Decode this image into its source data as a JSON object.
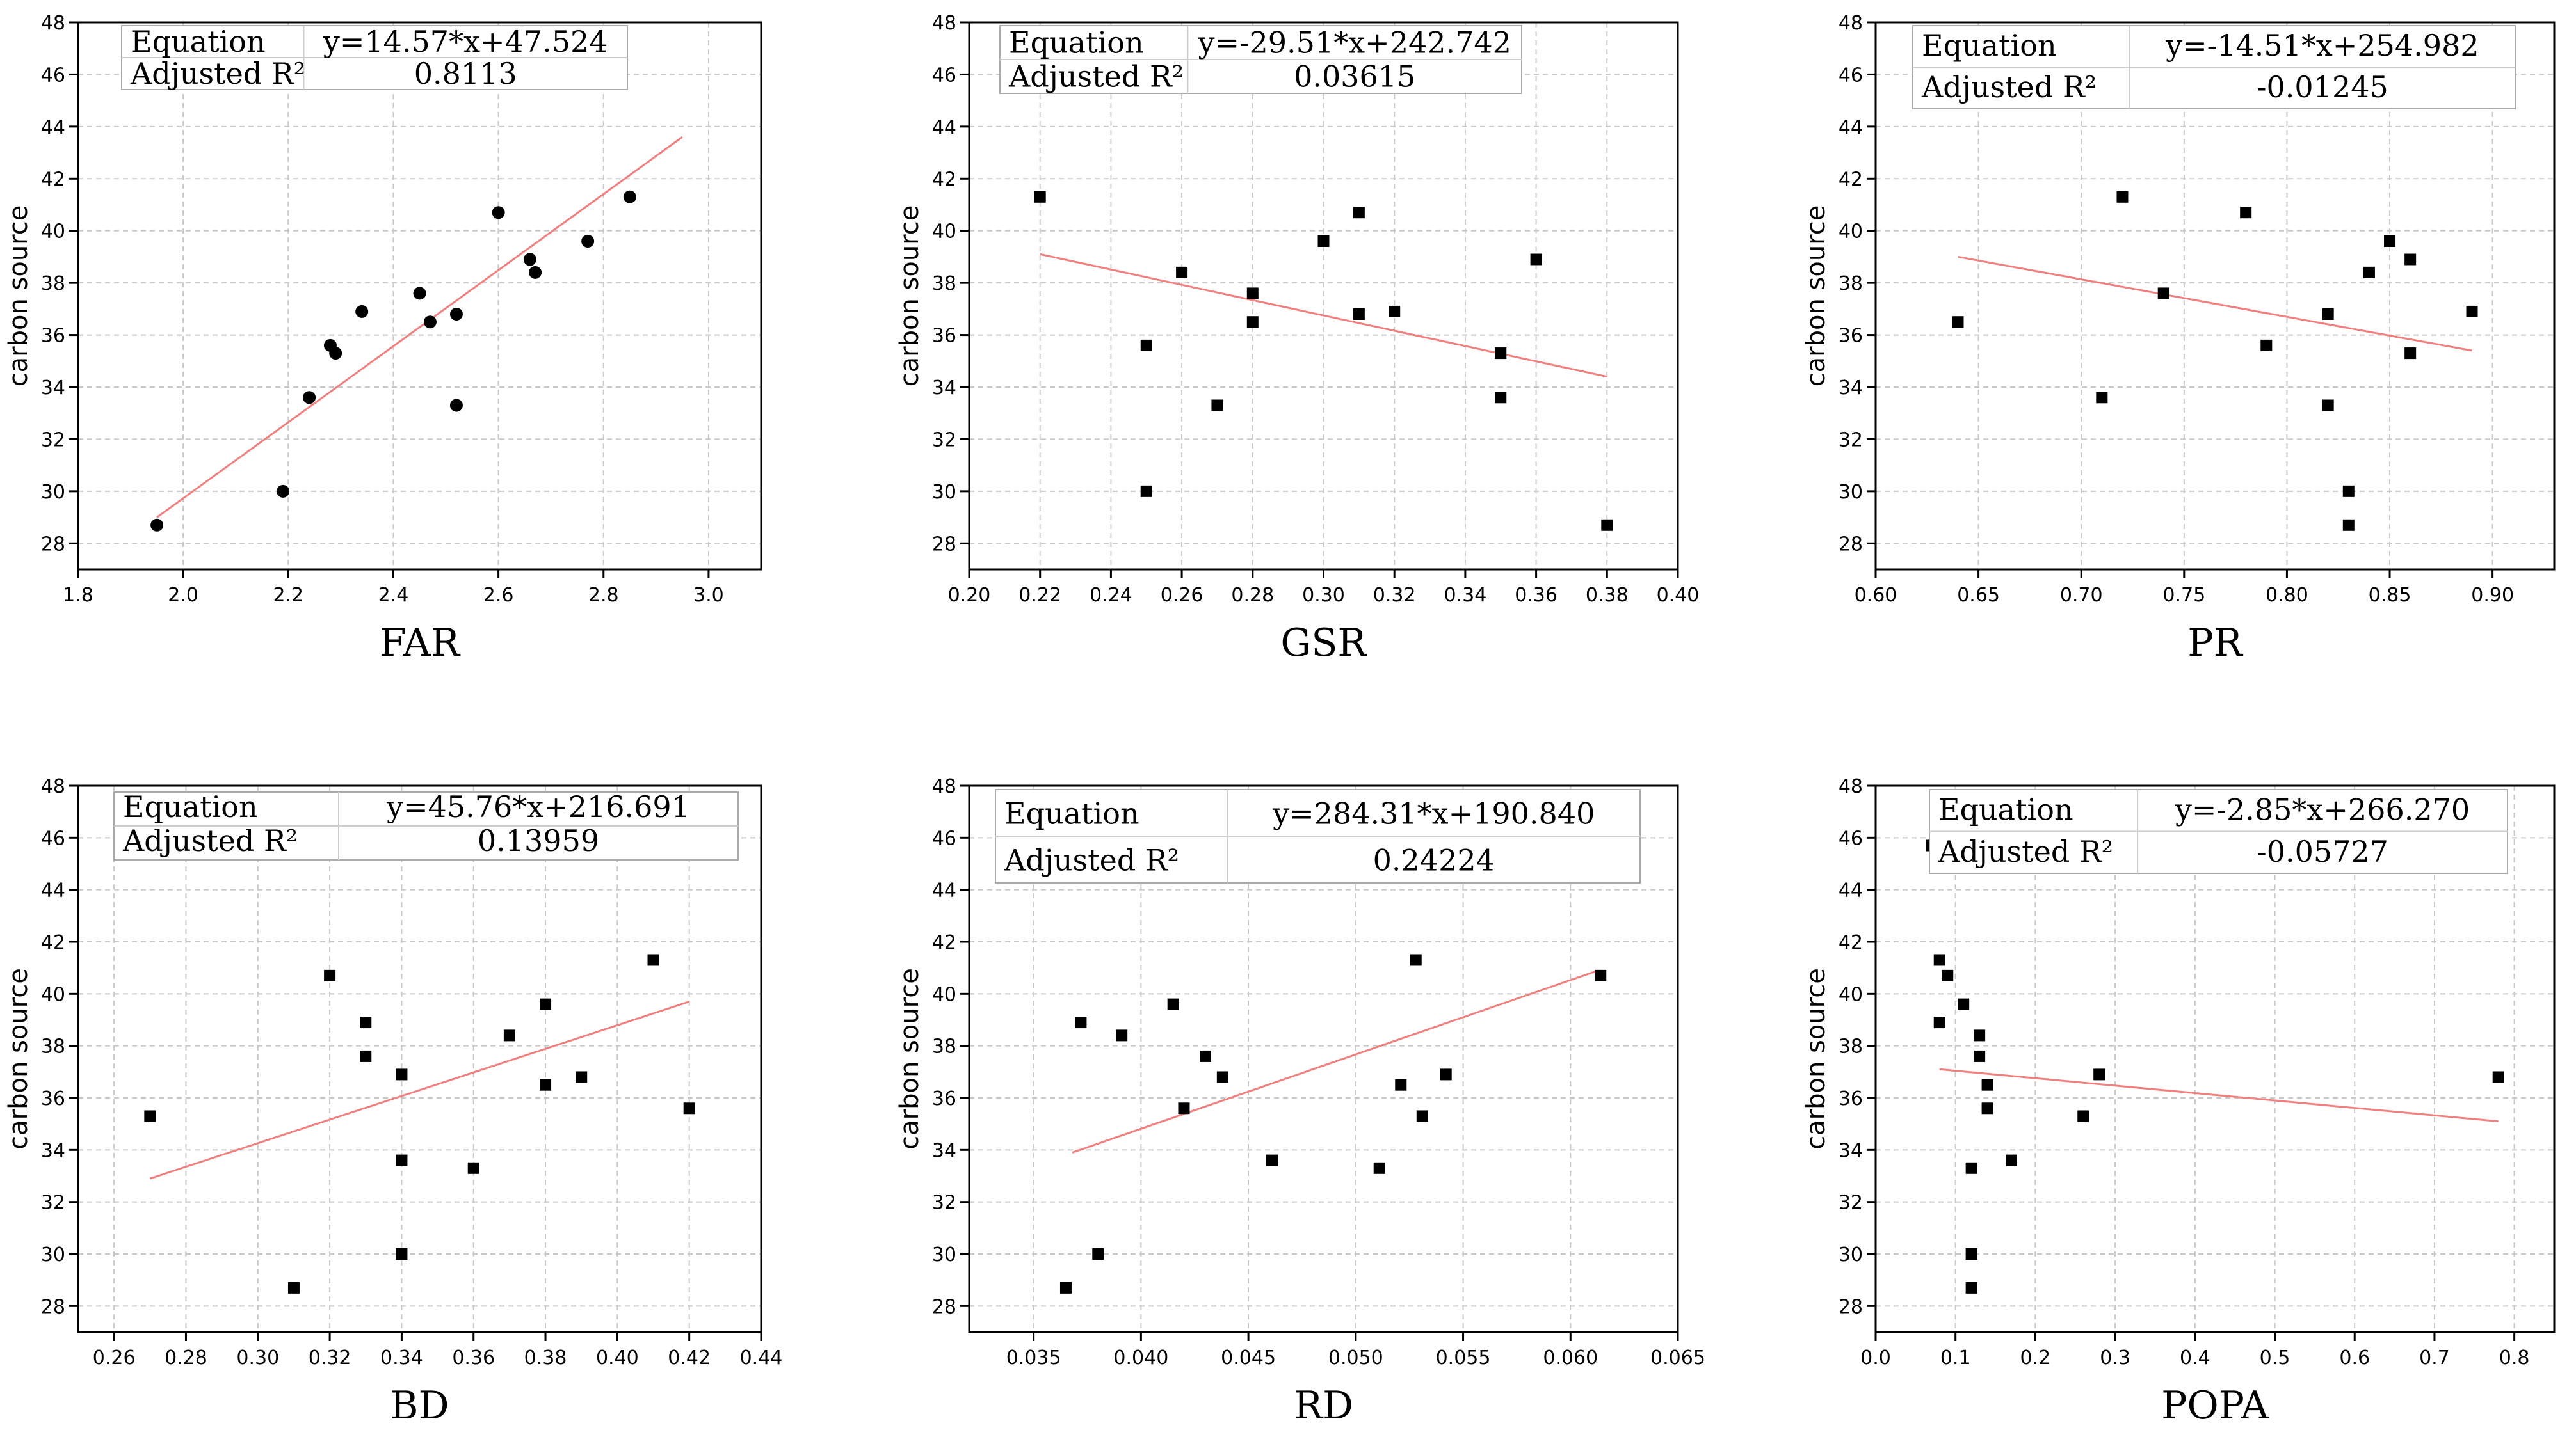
{
  "figure": {
    "background": "#ffffff",
    "fit_color": "#f08080",
    "point_color": "#000000",
    "grid_color": "#c8c8c8",
    "equation_label": "Equation",
    "r2_label": "Adjusted R²"
  },
  "chart_data": [
    {
      "type": "scatter",
      "title": "",
      "xlabel": "FAR",
      "ylabel": "carbon source",
      "xlim": [
        1.8,
        3.1
      ],
      "ylim": [
        27,
        48
      ],
      "xticks": [
        1.8,
        2.0,
        2.2,
        2.4,
        2.6,
        2.8,
        3.0
      ],
      "xtick_labels": [
        "1.8",
        "2.0",
        "2.2",
        "2.4",
        "2.6",
        "2.8",
        "3.0"
      ],
      "yticks": [
        28,
        30,
        32,
        34,
        36,
        38,
        40,
        42,
        44,
        46,
        48
      ],
      "ytick_labels": [
        "28",
        "30",
        "32",
        "34",
        "36",
        "38",
        "40",
        "42",
        "44",
        "46",
        "48"
      ],
      "marker": "circle",
      "points": [
        [
          1.95,
          28.7
        ],
        [
          2.19,
          30.0
        ],
        [
          2.24,
          33.6
        ],
        [
          2.28,
          35.6
        ],
        [
          2.29,
          35.3
        ],
        [
          2.34,
          36.9
        ],
        [
          2.45,
          37.6
        ],
        [
          2.47,
          36.5
        ],
        [
          2.52,
          36.8
        ],
        [
          2.52,
          33.3
        ],
        [
          2.6,
          40.7
        ],
        [
          2.66,
          38.9
        ],
        [
          2.67,
          38.4
        ],
        [
          2.77,
          39.6
        ],
        [
          2.85,
          41.3
        ]
      ],
      "fit": {
        "x": [
          1.95,
          2.95
        ],
        "y": [
          29.0,
          43.6
        ]
      },
      "equation": "y=14.57*x+47.524",
      "adjusted_r2": "0.8113"
    },
    {
      "type": "scatter",
      "title": "",
      "xlabel": "GSR",
      "ylabel": "carbon source",
      "xlim": [
        0.2,
        0.4
      ],
      "ylim": [
        27,
        48
      ],
      "xticks": [
        0.2,
        0.22,
        0.24,
        0.26,
        0.28,
        0.3,
        0.32,
        0.34,
        0.36,
        0.38,
        0.4
      ],
      "xtick_labels": [
        "0.20",
        "0.22",
        "0.24",
        "0.26",
        "0.28",
        "0.30",
        "0.32",
        "0.34",
        "0.36",
        "0.38",
        "0.40"
      ],
      "yticks": [
        28,
        30,
        32,
        34,
        36,
        38,
        40,
        42,
        44,
        46,
        48
      ],
      "ytick_labels": [
        "28",
        "30",
        "32",
        "34",
        "36",
        "38",
        "40",
        "42",
        "44",
        "46",
        "48"
      ],
      "marker": "square",
      "points": [
        [
          0.22,
          41.3
        ],
        [
          0.25,
          35.6
        ],
        [
          0.25,
          30.0
        ],
        [
          0.26,
          38.4
        ],
        [
          0.27,
          33.3
        ],
        [
          0.28,
          37.6
        ],
        [
          0.28,
          36.5
        ],
        [
          0.3,
          39.6
        ],
        [
          0.31,
          40.7
        ],
        [
          0.31,
          36.8
        ],
        [
          0.32,
          36.9
        ],
        [
          0.35,
          35.3
        ],
        [
          0.35,
          33.6
        ],
        [
          0.36,
          38.9
        ],
        [
          0.38,
          28.7
        ]
      ],
      "fit": {
        "x": [
          0.22,
          0.38
        ],
        "y": [
          39.1,
          34.4
        ]
      },
      "equation": "y=-29.51*x+242.742",
      "adjusted_r2": "0.03615"
    },
    {
      "type": "scatter",
      "title": "",
      "xlabel": "PR",
      "ylabel": "carbon source",
      "xlim": [
        0.6,
        0.93
      ],
      "ylim": [
        27,
        48
      ],
      "xticks": [
        0.6,
        0.65,
        0.7,
        0.75,
        0.8,
        0.85,
        0.9
      ],
      "xtick_labels": [
        "0.60",
        "0.65",
        "0.70",
        "0.75",
        "0.80",
        "0.85",
        "0.90"
      ],
      "yticks": [
        28,
        30,
        32,
        34,
        36,
        38,
        40,
        42,
        44,
        46,
        48
      ],
      "ytick_labels": [
        "28",
        "30",
        "32",
        "34",
        "36",
        "38",
        "40",
        "42",
        "44",
        "46",
        "48"
      ],
      "marker": "square",
      "points": [
        [
          0.64,
          36.5
        ],
        [
          0.71,
          33.6
        ],
        [
          0.72,
          41.3
        ],
        [
          0.74,
          37.6
        ],
        [
          0.78,
          40.7
        ],
        [
          0.79,
          35.6
        ],
        [
          0.82,
          36.8
        ],
        [
          0.82,
          33.3
        ],
        [
          0.83,
          30.0
        ],
        [
          0.83,
          28.7
        ],
        [
          0.84,
          38.4
        ],
        [
          0.85,
          39.6
        ],
        [
          0.86,
          38.9
        ],
        [
          0.86,
          35.3
        ],
        [
          0.89,
          36.9
        ]
      ],
      "fit": {
        "x": [
          0.64,
          0.89
        ],
        "y": [
          39.0,
          35.4
        ]
      },
      "equation": "y=-14.51*x+254.982",
      "adjusted_r2": "-0.01245"
    },
    {
      "type": "scatter",
      "title": "",
      "xlabel": "BD",
      "ylabel": "carbon source",
      "xlim": [
        0.25,
        0.44
      ],
      "ylim": [
        27,
        48
      ],
      "xticks": [
        0.26,
        0.28,
        0.3,
        0.32,
        0.34,
        0.36,
        0.38,
        0.4,
        0.42,
        0.44
      ],
      "xtick_labels": [
        "0.26",
        "0.28",
        "0.30",
        "0.32",
        "0.34",
        "0.36",
        "0.38",
        "0.40",
        "0.42",
        "0.44"
      ],
      "yticks": [
        28,
        30,
        32,
        34,
        36,
        38,
        40,
        42,
        44,
        46,
        48
      ],
      "ytick_labels": [
        "28",
        "30",
        "32",
        "34",
        "36",
        "38",
        "40",
        "42",
        "44",
        "46",
        "48"
      ],
      "marker": "square",
      "points": [
        [
          0.27,
          35.3
        ],
        [
          0.31,
          28.7
        ],
        [
          0.32,
          40.7
        ],
        [
          0.33,
          38.9
        ],
        [
          0.33,
          37.6
        ],
        [
          0.34,
          36.9
        ],
        [
          0.34,
          33.6
        ],
        [
          0.34,
          30.0
        ],
        [
          0.36,
          33.3
        ],
        [
          0.37,
          38.4
        ],
        [
          0.38,
          39.6
        ],
        [
          0.38,
          36.5
        ],
        [
          0.39,
          36.8
        ],
        [
          0.41,
          41.3
        ],
        [
          0.42,
          35.6
        ]
      ],
      "fit": {
        "x": [
          0.27,
          0.42
        ],
        "y": [
          32.9,
          39.7
        ]
      },
      "equation": "y=45.76*x+216.691",
      "adjusted_r2": "0.13959"
    },
    {
      "type": "scatter",
      "title": "",
      "xlabel": "RD",
      "ylabel": "carbon source",
      "xlim": [
        0.032,
        0.065
      ],
      "ylim": [
        27,
        48
      ],
      "xticks": [
        0.035,
        0.04,
        0.045,
        0.05,
        0.055,
        0.06,
        0.065
      ],
      "xtick_labels": [
        "0.035",
        "0.040",
        "0.045",
        "0.050",
        "0.055",
        "0.060",
        "0.065"
      ],
      "yticks": [
        28,
        30,
        32,
        34,
        36,
        38,
        40,
        42,
        44,
        46,
        48
      ],
      "ytick_labels": [
        "28",
        "30",
        "32",
        "34",
        "36",
        "38",
        "40",
        "42",
        "44",
        "46",
        "48"
      ],
      "marker": "square",
      "points": [
        [
          0.0365,
          28.7
        ],
        [
          0.0372,
          38.9
        ],
        [
          0.038,
          30.0
        ],
        [
          0.0391,
          38.4
        ],
        [
          0.0415,
          39.6
        ],
        [
          0.042,
          35.6
        ],
        [
          0.043,
          37.6
        ],
        [
          0.0438,
          36.8
        ],
        [
          0.0461,
          33.6
        ],
        [
          0.0511,
          33.3
        ],
        [
          0.0521,
          36.5
        ],
        [
          0.0528,
          41.3
        ],
        [
          0.0531,
          35.3
        ],
        [
          0.0542,
          36.9
        ],
        [
          0.0614,
          40.7
        ]
      ],
      "fit": {
        "x": [
          0.0368,
          0.0613
        ],
        "y": [
          33.9,
          40.9
        ]
      },
      "equation": "y=284.31*x+190.840",
      "adjusted_r2": "0.24224"
    },
    {
      "type": "scatter",
      "title": "",
      "xlabel": "POPA",
      "ylabel": "carbon source",
      "xlim": [
        0.0,
        0.85
      ],
      "ylim": [
        27,
        48
      ],
      "xticks": [
        0.0,
        0.1,
        0.2,
        0.3,
        0.4,
        0.5,
        0.6,
        0.7,
        0.8
      ],
      "xtick_labels": [
        "0.0",
        "0.1",
        "0.2",
        "0.3",
        "0.4",
        "0.5",
        "0.6",
        "0.7",
        "0.8"
      ],
      "yticks": [
        28,
        30,
        32,
        34,
        36,
        38,
        40,
        42,
        44,
        46,
        48
      ],
      "ytick_labels": [
        "28",
        "30",
        "32",
        "34",
        "36",
        "38",
        "40",
        "42",
        "44",
        "46",
        "48"
      ],
      "marker": "square",
      "points": [
        [
          0.07,
          45.7
        ],
        [
          0.08,
          41.3
        ],
        [
          0.08,
          38.9
        ],
        [
          0.09,
          40.7
        ],
        [
          0.11,
          39.6
        ],
        [
          0.12,
          33.3
        ],
        [
          0.12,
          30.0
        ],
        [
          0.12,
          28.7
        ],
        [
          0.13,
          38.4
        ],
        [
          0.13,
          37.6
        ],
        [
          0.14,
          36.5
        ],
        [
          0.14,
          35.6
        ],
        [
          0.17,
          33.6
        ],
        [
          0.26,
          35.3
        ],
        [
          0.28,
          36.9
        ],
        [
          0.78,
          36.8
        ]
      ],
      "fit": {
        "x": [
          0.08,
          0.78
        ],
        "y": [
          37.1,
          35.1
        ]
      },
      "equation": "y=-2.85*x+266.270",
      "adjusted_r2": "-0.05727"
    }
  ]
}
